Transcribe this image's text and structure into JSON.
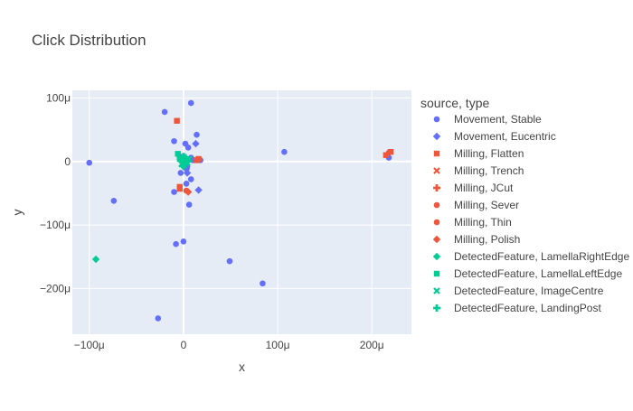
{
  "chart_data": {
    "type": "scatter",
    "title": "Click Distribution",
    "xlabel": "x",
    "ylabel": "y",
    "xlim": [
      -118,
      242
    ],
    "ylim": [
      -272,
      112
    ],
    "grid": true,
    "legend_placement": "right",
    "legend_title": "source, type",
    "x_ticks": [
      {
        "value": -100,
        "label": "−100μ"
      },
      {
        "value": 0,
        "label": "0"
      },
      {
        "value": 100,
        "label": "100μ"
      },
      {
        "value": 200,
        "label": "200μ"
      }
    ],
    "y_ticks": [
      {
        "value": 100,
        "label": "100μ"
      },
      {
        "value": 0,
        "label": "0"
      },
      {
        "value": -100,
        "label": "−100μ"
      },
      {
        "value": -200,
        "label": "−200μ"
      }
    ],
    "series": [
      {
        "name": "Movement, Stable",
        "color": "#636efa",
        "symbol": "circle",
        "points": [
          [
            -100,
            -2
          ],
          [
            -74,
            -62
          ],
          [
            -20,
            78
          ],
          [
            8,
            92
          ],
          [
            -10,
            32
          ],
          [
            -3,
            -18
          ],
          [
            2,
            28
          ],
          [
            5,
            22
          ],
          [
            14,
            42
          ],
          [
            18,
            2
          ],
          [
            -8,
            -130
          ],
          [
            0,
            -126
          ],
          [
            6,
            -68
          ],
          [
            8,
            -28
          ],
          [
            -10,
            -48
          ],
          [
            3,
            -35
          ],
          [
            0,
            5
          ],
          [
            -4,
            8
          ],
          [
            8,
            6
          ],
          [
            4,
            -8
          ],
          [
            -2,
            4
          ],
          [
            10,
            2
          ],
          [
            49,
            -157
          ],
          [
            84,
            -192
          ],
          [
            -27,
            -247
          ],
          [
            107,
            15
          ],
          [
            218,
            6
          ]
        ]
      },
      {
        "name": "Movement, Eucentric",
        "color": "#636efa",
        "symbol": "diamond",
        "points": [
          [
            13,
            28
          ],
          [
            3,
            -12
          ],
          [
            4,
            -18
          ],
          [
            16,
            -45
          ]
        ]
      },
      {
        "name": "Milling, Flatten",
        "color": "#ef553b",
        "symbol": "square",
        "points": [
          [
            -7,
            64
          ],
          [
            -4,
            -40
          ],
          [
            -4,
            -43
          ],
          [
            14,
            2
          ],
          [
            16,
            4
          ],
          [
            215,
            10
          ],
          [
            220,
            15
          ]
        ]
      },
      {
        "name": "Milling, Trench",
        "color": "#ef553b",
        "symbol": "x",
        "points": []
      },
      {
        "name": "Milling, JCut",
        "color": "#ef553b",
        "symbol": "cross",
        "points": []
      },
      {
        "name": "Milling, Sever",
        "color": "#ef553b",
        "symbol": "circle",
        "points": [
          [
            3,
            -46
          ]
        ]
      },
      {
        "name": "Milling, Thin",
        "color": "#ef553b",
        "symbol": "circle",
        "points": [
          [
            218,
            14
          ]
        ]
      },
      {
        "name": "Milling, Polish",
        "color": "#ef553b",
        "symbol": "diamond",
        "points": [
          [
            5,
            -48
          ]
        ]
      },
      {
        "name": "DetectedFeature, LamellaRightEdge",
        "color": "#00cc96",
        "symbol": "diamond",
        "points": [
          [
            -93,
            -154
          ],
          [
            0,
            -8
          ],
          [
            3,
            2
          ]
        ]
      },
      {
        "name": "DetectedFeature, LamellaLeftEdge",
        "color": "#00cc96",
        "symbol": "square",
        "points": [
          [
            -4,
            4
          ],
          [
            -1,
            1
          ],
          [
            2,
            -2
          ],
          [
            -6,
            12
          ]
        ]
      },
      {
        "name": "DetectedFeature, ImageCentre",
        "color": "#00cc96",
        "symbol": "x",
        "points": [
          [
            0,
            0
          ],
          [
            4,
            -2
          ],
          [
            -2,
            -4
          ],
          [
            6,
            4
          ]
        ]
      },
      {
        "name": "DetectedFeature, LandingPost",
        "color": "#00cc96",
        "symbol": "cross",
        "points": [
          [
            -2,
            2
          ],
          [
            2,
            6
          ],
          [
            5,
            0
          ],
          [
            0,
            8
          ]
        ]
      }
    ]
  }
}
